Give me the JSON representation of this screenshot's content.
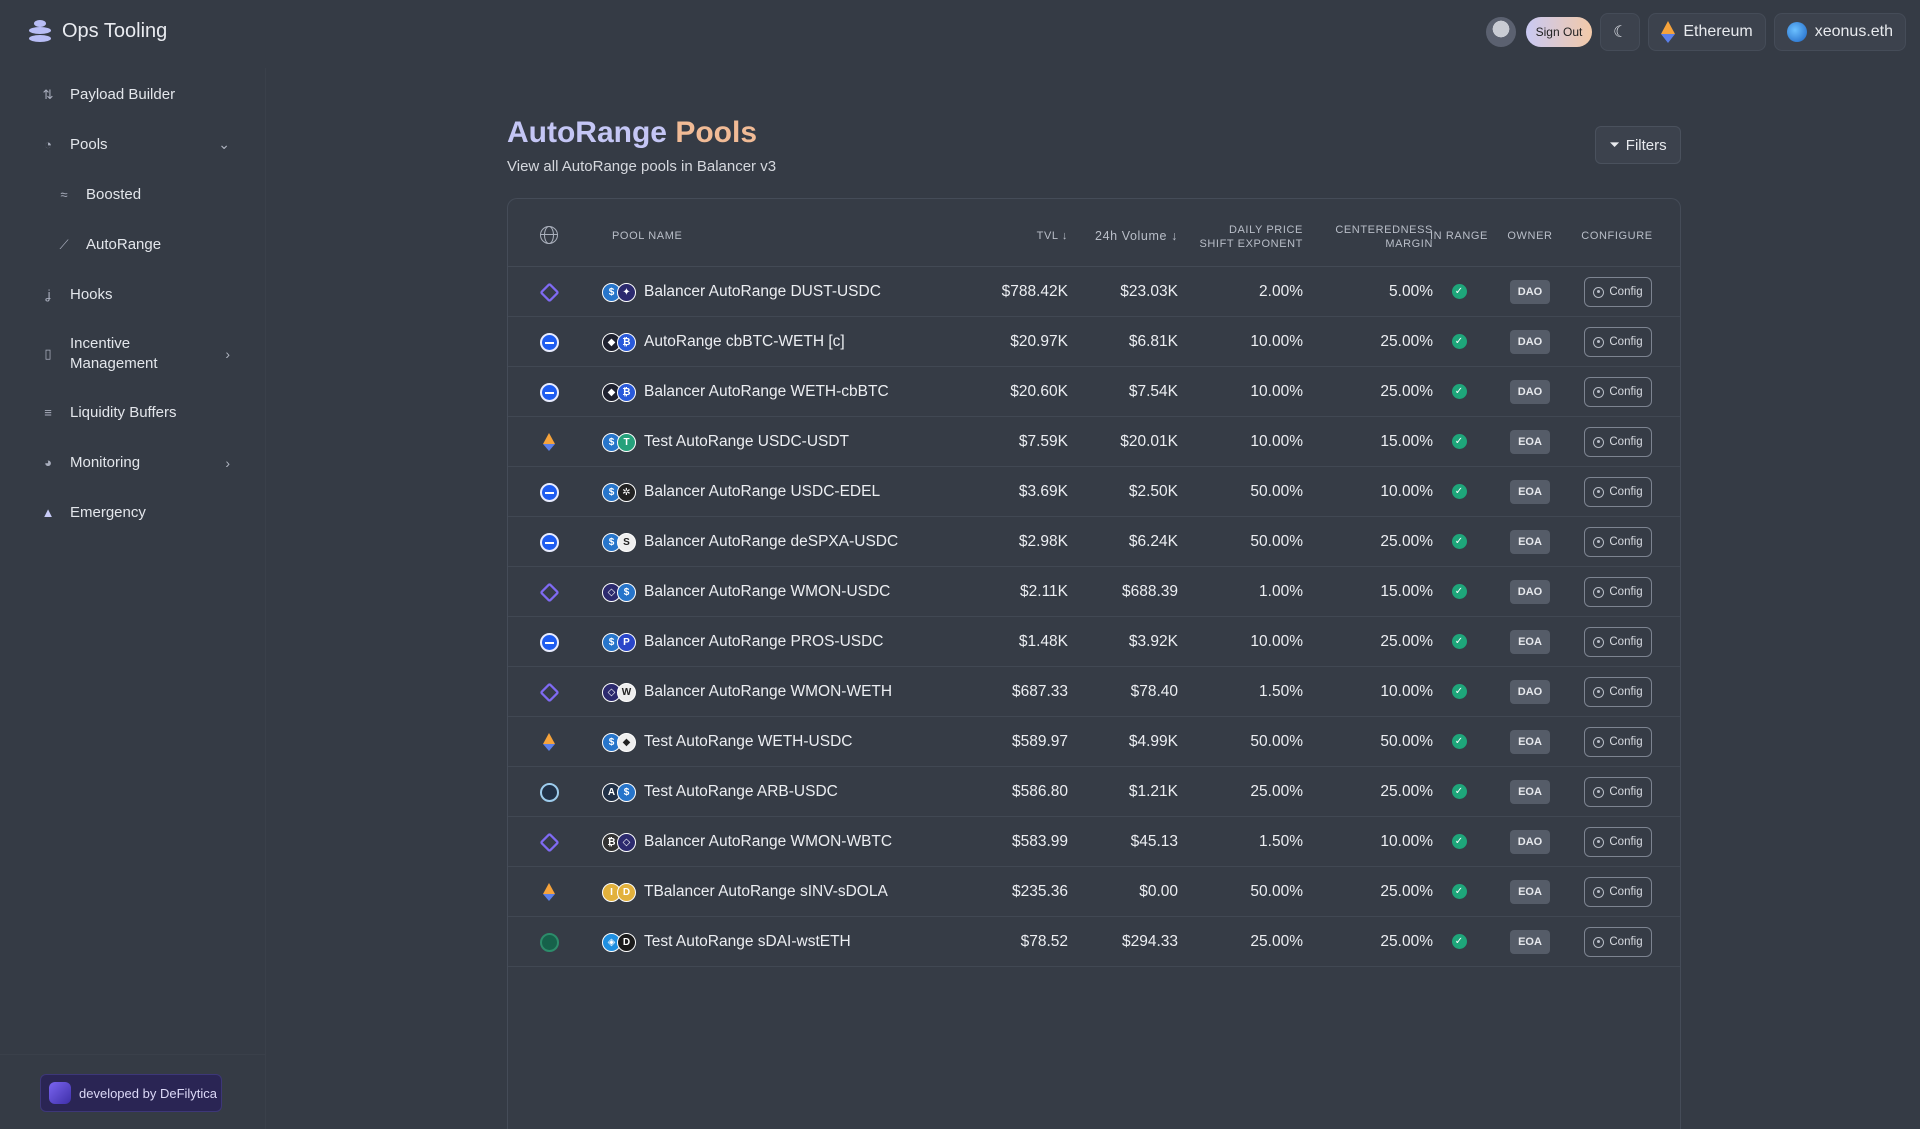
{
  "app": {
    "name": "Ops Tooling"
  },
  "header": {
    "sign_out": "Sign Out",
    "network": "Ethereum",
    "account": "xeonus.eth"
  },
  "sidebar": {
    "items": [
      {
        "label": "Payload Builder",
        "icon": "payload-icon"
      },
      {
        "label": "Pools",
        "icon": "pie-chart-icon"
      },
      {
        "label": "Boosted",
        "icon": "boosted-icon"
      },
      {
        "label": "AutoRange",
        "icon": "line-chart-icon"
      },
      {
        "label": "Hooks",
        "icon": "hook-icon"
      },
      {
        "label": "Incentive\nManagement",
        "icon": "incentive-icon"
      },
      {
        "label": "Liquidity Buffers",
        "icon": "buffers-icon"
      },
      {
        "label": "Monitoring",
        "icon": "monitor-icon"
      },
      {
        "label": "Emergency",
        "icon": "warning-icon"
      }
    ],
    "developed_by": "developed by DeFilytica"
  },
  "main": {
    "title_part1": "AutoRange",
    "title_part2": "Pools",
    "subtitle": "View all AutoRange pools in Balancer v3",
    "filters_label": "Filters"
  },
  "table": {
    "headers": {
      "pool_name": "POOL NAME",
      "tvl": "TVL",
      "volume": "24h Volume",
      "daily_1": "DAILY PRICE",
      "daily_2": "SHIFT EXPONENT",
      "margin_1": "CENTEREDNESS",
      "margin_2": "MARGIN",
      "in_range": "IN RANGE",
      "owner": "OWNER",
      "configure": "CONFIGURE"
    },
    "config_label": "Config",
    "rows": [
      {
        "chain": "monad",
        "name": "Balancer AutoRange DUST-USDC",
        "tvl": "$788.42K",
        "volume": "$23.03K",
        "shift": "2.00%",
        "margin": "5.00%",
        "owner": "DAO"
      },
      {
        "chain": "base",
        "name": "AutoRange cbBTC-WETH [c]",
        "tvl": "$20.97K",
        "volume": "$6.81K",
        "shift": "10.00%",
        "margin": "25.00%",
        "owner": "DAO"
      },
      {
        "chain": "base",
        "name": "Balancer AutoRange WETH-cbBTC",
        "tvl": "$20.60K",
        "volume": "$7.54K",
        "shift": "10.00%",
        "margin": "25.00%",
        "owner": "DAO"
      },
      {
        "chain": "ethereum",
        "name": "Test AutoRange USDC-USDT",
        "tvl": "$7.59K",
        "volume": "$20.01K",
        "shift": "10.00%",
        "margin": "15.00%",
        "owner": "EOA"
      },
      {
        "chain": "base",
        "name": "Balancer AutoRange USDC-EDEL",
        "tvl": "$3.69K",
        "volume": "$2.50K",
        "shift": "50.00%",
        "margin": "10.00%",
        "owner": "EOA"
      },
      {
        "chain": "base",
        "name": "Balancer AutoRange deSPXA-USDC",
        "tvl": "$2.98K",
        "volume": "$6.24K",
        "shift": "50.00%",
        "margin": "25.00%",
        "owner": "EOA"
      },
      {
        "chain": "monad",
        "name": "Balancer AutoRange WMON-USDC",
        "tvl": "$2.11K",
        "volume": "$688.39",
        "shift": "1.00%",
        "margin": "15.00%",
        "owner": "DAO"
      },
      {
        "chain": "base",
        "name": "Balancer AutoRange PROS-USDC",
        "tvl": "$1.48K",
        "volume": "$3.92K",
        "shift": "10.00%",
        "margin": "25.00%",
        "owner": "EOA"
      },
      {
        "chain": "monad",
        "name": "Balancer AutoRange WMON-WETH",
        "tvl": "$687.33",
        "volume": "$78.40",
        "shift": "1.50%",
        "margin": "10.00%",
        "owner": "DAO"
      },
      {
        "chain": "ethereum",
        "name": "Test AutoRange WETH-USDC",
        "tvl": "$589.97",
        "volume": "$4.99K",
        "shift": "50.00%",
        "margin": "50.00%",
        "owner": "EOA"
      },
      {
        "chain": "arbitrum",
        "name": "Test AutoRange ARB-USDC",
        "tvl": "$586.80",
        "volume": "$1.21K",
        "shift": "25.00%",
        "margin": "25.00%",
        "owner": "EOA"
      },
      {
        "chain": "monad",
        "name": "Balancer AutoRange WMON-WBTC",
        "tvl": "$583.99",
        "volume": "$45.13",
        "shift": "1.50%",
        "margin": "10.00%",
        "owner": "DAO"
      },
      {
        "chain": "ethereum",
        "name": "TBalancer AutoRange sINV-sDOLA",
        "tvl": "$235.36",
        "volume": "$0.00",
        "shift": "50.00%",
        "margin": "25.00%",
        "owner": "EOA"
      },
      {
        "chain": "gnosis",
        "name": "Test AutoRange sDAI-wstETH",
        "tvl": "$78.52",
        "volume": "$294.33",
        "shift": "25.00%",
        "margin": "25.00%",
        "owner": "EOA"
      }
    ]
  }
}
